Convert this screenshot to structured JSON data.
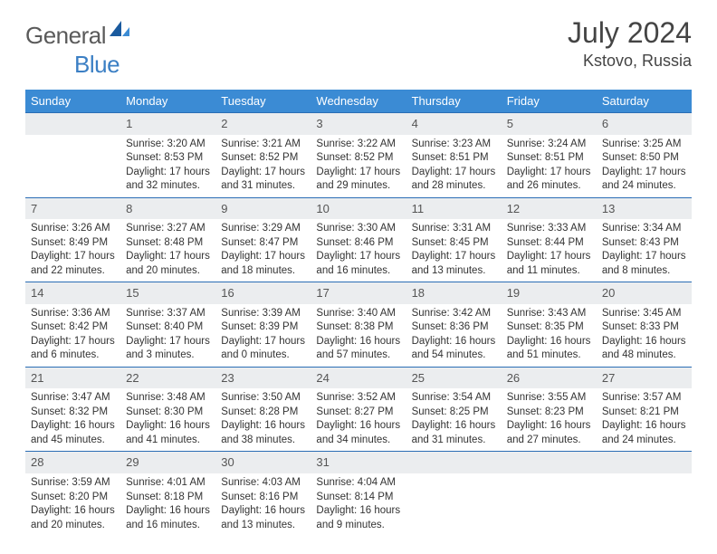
{
  "logo": {
    "general": "General",
    "blue": "Blue"
  },
  "title": "July 2024",
  "location": "Kstovo, Russia",
  "colors": {
    "header_bg": "#3b8bd4",
    "header_text": "#ffffff",
    "row_divider": "#2a6db5",
    "daynum_bg": "#ebedef",
    "logo_blue": "#3b7fc4",
    "logo_dark_blue": "#1a5a9e"
  },
  "days": [
    "Sunday",
    "Monday",
    "Tuesday",
    "Wednesday",
    "Thursday",
    "Friday",
    "Saturday"
  ],
  "weeks": [
    [
      {
        "n": "",
        "sr": "",
        "ss": "",
        "dl": ""
      },
      {
        "n": "1",
        "sr": "Sunrise: 3:20 AM",
        "ss": "Sunset: 8:53 PM",
        "dl": "Daylight: 17 hours and 32 minutes."
      },
      {
        "n": "2",
        "sr": "Sunrise: 3:21 AM",
        "ss": "Sunset: 8:52 PM",
        "dl": "Daylight: 17 hours and 31 minutes."
      },
      {
        "n": "3",
        "sr": "Sunrise: 3:22 AM",
        "ss": "Sunset: 8:52 PM",
        "dl": "Daylight: 17 hours and 29 minutes."
      },
      {
        "n": "4",
        "sr": "Sunrise: 3:23 AM",
        "ss": "Sunset: 8:51 PM",
        "dl": "Daylight: 17 hours and 28 minutes."
      },
      {
        "n": "5",
        "sr": "Sunrise: 3:24 AM",
        "ss": "Sunset: 8:51 PM",
        "dl": "Daylight: 17 hours and 26 minutes."
      },
      {
        "n": "6",
        "sr": "Sunrise: 3:25 AM",
        "ss": "Sunset: 8:50 PM",
        "dl": "Daylight: 17 hours and 24 minutes."
      }
    ],
    [
      {
        "n": "7",
        "sr": "Sunrise: 3:26 AM",
        "ss": "Sunset: 8:49 PM",
        "dl": "Daylight: 17 hours and 22 minutes."
      },
      {
        "n": "8",
        "sr": "Sunrise: 3:27 AM",
        "ss": "Sunset: 8:48 PM",
        "dl": "Daylight: 17 hours and 20 minutes."
      },
      {
        "n": "9",
        "sr": "Sunrise: 3:29 AM",
        "ss": "Sunset: 8:47 PM",
        "dl": "Daylight: 17 hours and 18 minutes."
      },
      {
        "n": "10",
        "sr": "Sunrise: 3:30 AM",
        "ss": "Sunset: 8:46 PM",
        "dl": "Daylight: 17 hours and 16 minutes."
      },
      {
        "n": "11",
        "sr": "Sunrise: 3:31 AM",
        "ss": "Sunset: 8:45 PM",
        "dl": "Daylight: 17 hours and 13 minutes."
      },
      {
        "n": "12",
        "sr": "Sunrise: 3:33 AM",
        "ss": "Sunset: 8:44 PM",
        "dl": "Daylight: 17 hours and 11 minutes."
      },
      {
        "n": "13",
        "sr": "Sunrise: 3:34 AM",
        "ss": "Sunset: 8:43 PM",
        "dl": "Daylight: 17 hours and 8 minutes."
      }
    ],
    [
      {
        "n": "14",
        "sr": "Sunrise: 3:36 AM",
        "ss": "Sunset: 8:42 PM",
        "dl": "Daylight: 17 hours and 6 minutes."
      },
      {
        "n": "15",
        "sr": "Sunrise: 3:37 AM",
        "ss": "Sunset: 8:40 PM",
        "dl": "Daylight: 17 hours and 3 minutes."
      },
      {
        "n": "16",
        "sr": "Sunrise: 3:39 AM",
        "ss": "Sunset: 8:39 PM",
        "dl": "Daylight: 17 hours and 0 minutes."
      },
      {
        "n": "17",
        "sr": "Sunrise: 3:40 AM",
        "ss": "Sunset: 8:38 PM",
        "dl": "Daylight: 16 hours and 57 minutes."
      },
      {
        "n": "18",
        "sr": "Sunrise: 3:42 AM",
        "ss": "Sunset: 8:36 PM",
        "dl": "Daylight: 16 hours and 54 minutes."
      },
      {
        "n": "19",
        "sr": "Sunrise: 3:43 AM",
        "ss": "Sunset: 8:35 PM",
        "dl": "Daylight: 16 hours and 51 minutes."
      },
      {
        "n": "20",
        "sr": "Sunrise: 3:45 AM",
        "ss": "Sunset: 8:33 PM",
        "dl": "Daylight: 16 hours and 48 minutes."
      }
    ],
    [
      {
        "n": "21",
        "sr": "Sunrise: 3:47 AM",
        "ss": "Sunset: 8:32 PM",
        "dl": "Daylight: 16 hours and 45 minutes."
      },
      {
        "n": "22",
        "sr": "Sunrise: 3:48 AM",
        "ss": "Sunset: 8:30 PM",
        "dl": "Daylight: 16 hours and 41 minutes."
      },
      {
        "n": "23",
        "sr": "Sunrise: 3:50 AM",
        "ss": "Sunset: 8:28 PM",
        "dl": "Daylight: 16 hours and 38 minutes."
      },
      {
        "n": "24",
        "sr": "Sunrise: 3:52 AM",
        "ss": "Sunset: 8:27 PM",
        "dl": "Daylight: 16 hours and 34 minutes."
      },
      {
        "n": "25",
        "sr": "Sunrise: 3:54 AM",
        "ss": "Sunset: 8:25 PM",
        "dl": "Daylight: 16 hours and 31 minutes."
      },
      {
        "n": "26",
        "sr": "Sunrise: 3:55 AM",
        "ss": "Sunset: 8:23 PM",
        "dl": "Daylight: 16 hours and 27 minutes."
      },
      {
        "n": "27",
        "sr": "Sunrise: 3:57 AM",
        "ss": "Sunset: 8:21 PM",
        "dl": "Daylight: 16 hours and 24 minutes."
      }
    ],
    [
      {
        "n": "28",
        "sr": "Sunrise: 3:59 AM",
        "ss": "Sunset: 8:20 PM",
        "dl": "Daylight: 16 hours and 20 minutes."
      },
      {
        "n": "29",
        "sr": "Sunrise: 4:01 AM",
        "ss": "Sunset: 8:18 PM",
        "dl": "Daylight: 16 hours and 16 minutes."
      },
      {
        "n": "30",
        "sr": "Sunrise: 4:03 AM",
        "ss": "Sunset: 8:16 PM",
        "dl": "Daylight: 16 hours and 13 minutes."
      },
      {
        "n": "31",
        "sr": "Sunrise: 4:04 AM",
        "ss": "Sunset: 8:14 PM",
        "dl": "Daylight: 16 hours and 9 minutes."
      },
      {
        "n": "",
        "sr": "",
        "ss": "",
        "dl": ""
      },
      {
        "n": "",
        "sr": "",
        "ss": "",
        "dl": ""
      },
      {
        "n": "",
        "sr": "",
        "ss": "",
        "dl": ""
      }
    ]
  ]
}
